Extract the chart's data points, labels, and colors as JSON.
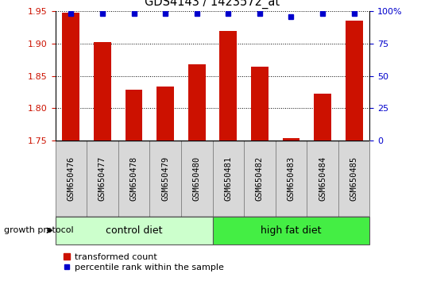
{
  "title": "GDS4143 / 1423572_at",
  "samples": [
    "GSM650476",
    "GSM650477",
    "GSM650478",
    "GSM650479",
    "GSM650480",
    "GSM650481",
    "GSM650482",
    "GSM650483",
    "GSM650484",
    "GSM650485"
  ],
  "bar_values": [
    1.948,
    1.902,
    1.828,
    1.834,
    1.868,
    1.919,
    1.864,
    1.754,
    1.822,
    1.935
  ],
  "percentile_values": [
    98,
    98,
    98,
    98,
    98,
    98,
    98,
    96,
    98,
    98
  ],
  "ylim": [
    1.75,
    1.95
  ],
  "yticks": [
    1.75,
    1.8,
    1.85,
    1.9,
    1.95
  ],
  "ytick_labels": [
    "1.75",
    "1.80",
    "1.85",
    "1.90",
    "1.95"
  ],
  "right_yticks": [
    0,
    25,
    50,
    75,
    100
  ],
  "right_ytick_labels": [
    "0",
    "25",
    "50",
    "75",
    "100%"
  ],
  "right_ylim": [
    0,
    100
  ],
  "bar_color": "#CC1100",
  "dot_color": "#0000CC",
  "control_diet_color": "#CCFFCC",
  "high_fat_color": "#44EE44",
  "left_axis_color": "#CC1100",
  "right_axis_color": "#0000CC",
  "grid_color": "#000000",
  "control_samples": 5,
  "high_fat_samples": 5,
  "control_label": "control diet",
  "high_fat_label": "high fat diet",
  "group_label": "growth protocol",
  "legend_bar_label": "transformed count",
  "legend_dot_label": "percentile rank within the sample",
  "bar_width": 0.55,
  "plot_bg_color": "#FFFFFF",
  "label_bg_color": "#D8D8D8",
  "label_border_color": "#888888",
  "plot_border_color": "#000000"
}
